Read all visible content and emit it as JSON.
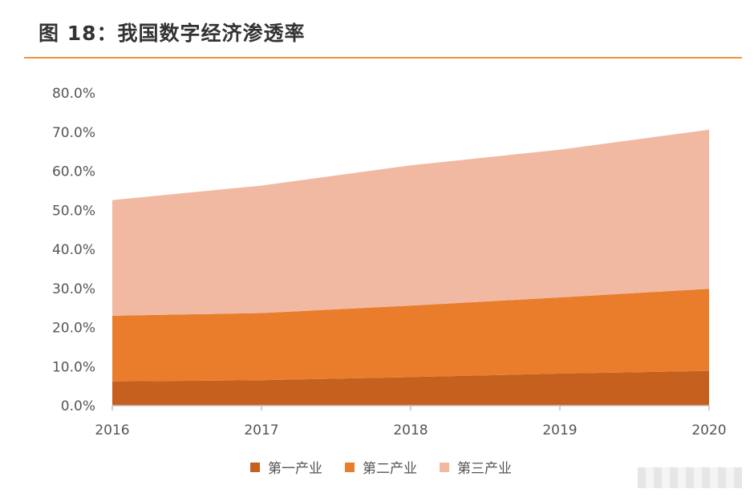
{
  "figure": {
    "title": "图 18：我国数字经济渗透率"
  },
  "colors": {
    "title_rule": "#ed9340",
    "axis": "#bfbfbf",
    "text": "#555555"
  },
  "legend_position": "bottom",
  "chart_data": {
    "type": "area",
    "stacked": true,
    "title": "图 18：我国数字经济渗透率",
    "x": [
      "2016",
      "2017",
      "2018",
      "2019",
      "2020"
    ],
    "ylim": [
      0,
      80
    ],
    "yticks": [
      "0.0%",
      "10.0%",
      "20.0%",
      "30.0%",
      "40.0%",
      "50.0%",
      "60.0%",
      "70.0%",
      "80.0%"
    ],
    "unit": "%",
    "grid": false,
    "series": [
      {
        "name": "第一产业",
        "color": "#c5601e",
        "values": [
          6.2,
          6.5,
          7.3,
          8.2,
          8.9
        ]
      },
      {
        "name": "第二产业",
        "color": "#e97d2c",
        "values": [
          16.8,
          17.2,
          18.3,
          19.5,
          21.0
        ]
      },
      {
        "name": "第三产业",
        "color": "#f2b9a2",
        "values": [
          29.6,
          32.6,
          35.9,
          37.8,
          40.7
        ]
      }
    ]
  }
}
